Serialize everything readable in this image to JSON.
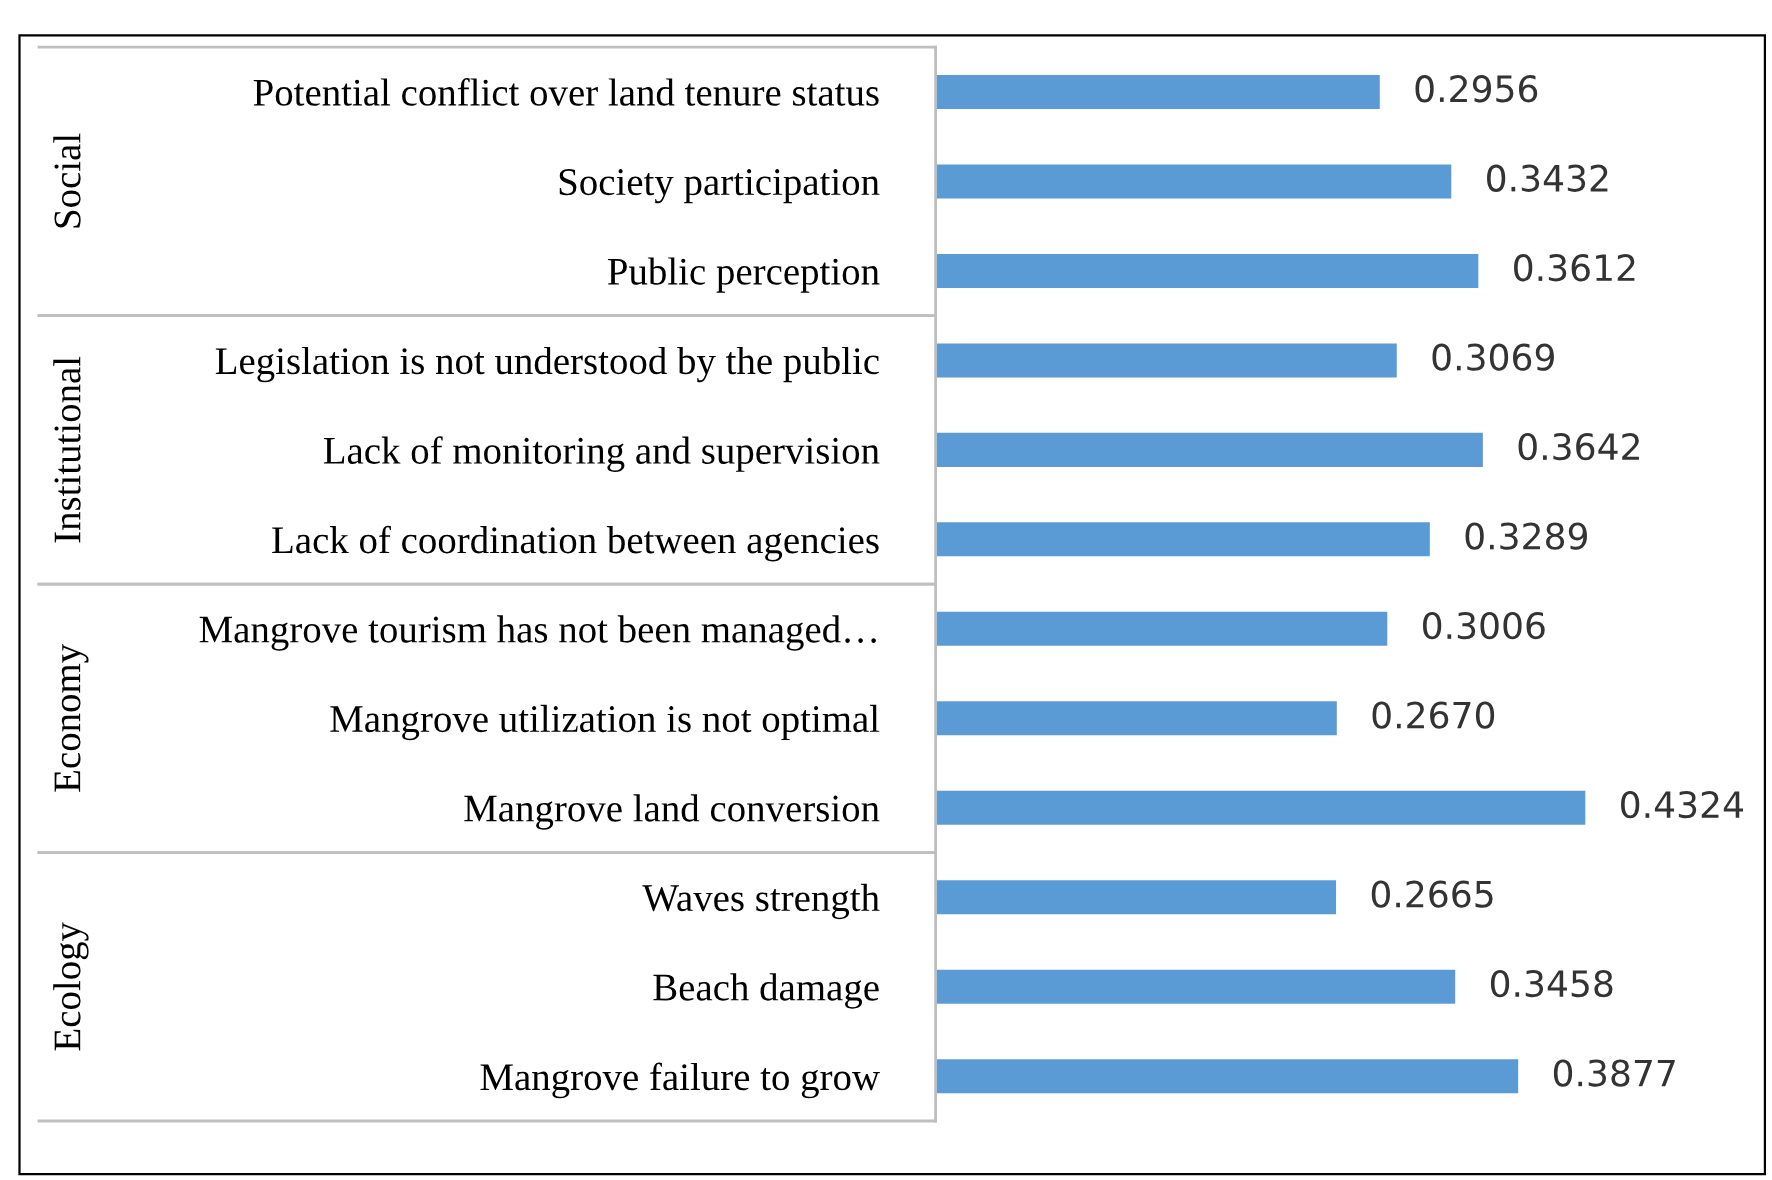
{
  "chart_data": {
    "type": "bar",
    "orientation": "horizontal",
    "categories": [
      "Potential conflict over land tenure status",
      "Society participation",
      "Public perception",
      "Legislation is not understood by the public",
      "Lack of monitoring and supervision",
      "Lack of coordination between agencies",
      "Mangrove tourism has not been managed…",
      "Mangrove utilization is not optimal",
      "Mangrove land conversion",
      "Waves strength",
      "Beach damage",
      "Mangrove failure to grow"
    ],
    "values": [
      0.2956,
      0.3432,
      0.3612,
      0.3069,
      0.3642,
      0.3289,
      0.3006,
      0.267,
      0.4324,
      0.2665,
      0.3458,
      0.3877
    ],
    "value_labels": [
      "0.2956",
      "0.3432",
      "0.3612",
      "0.3069",
      "0.3642",
      "0.3289",
      "0.3006",
      "0.2670",
      "0.4324",
      "0.2665",
      "0.3458",
      "0.3877"
    ],
    "color": "#5b9bd5",
    "annotations": [
      "Social",
      "Institutional",
      "Economy",
      "Ecology"
    ],
    "grid": false,
    "legend": false
  }
}
